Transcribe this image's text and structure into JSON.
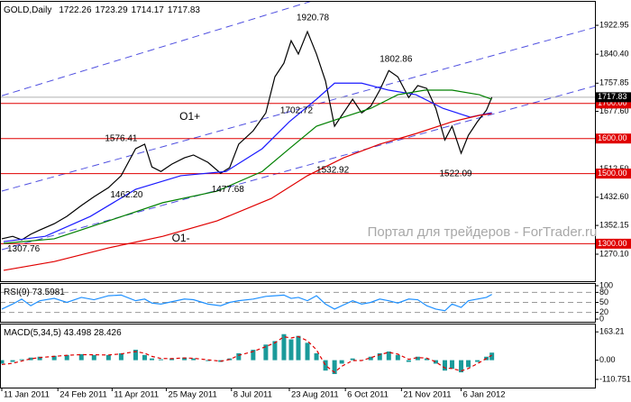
{
  "chart_data": [
    {
      "type": "line",
      "title": "GOLD,Daily",
      "ohlc": [
        1722.26,
        1723.29,
        1714.17,
        1717.83
      ],
      "watermark": "Портал для трейдеров - ForTrader.ru",
      "xlim": [
        -1,
        328
      ],
      "ylim": [
        1193,
        1990
      ],
      "yticks": [
        1922.95,
        {
          "value": 1840.4,
          "label": "1840.40"
        },
        1757.85,
        {
          "value": 1677.6,
          "label": "1677.60"
        },
        1595.05,
        {
          "value": 1512.5,
          "label": "1512.50"
        },
        {
          "value": 1432.6,
          "label": "1432.60"
        },
        1352.15,
        {
          "value": 1270.1,
          "label": "1270.10"
        }
      ],
      "series": [
        {
          "color": "#000000",
          "x": [
            0,
            6,
            11,
            16,
            21,
            29,
            36,
            44,
            51,
            59,
            66,
            74,
            79,
            83,
            88,
            94,
            101,
            106,
            114,
            121,
            126,
            131,
            139,
            146,
            151,
            156,
            160,
            164,
            169,
            174,
            179,
            184,
            188,
            194,
            199,
            204,
            209,
            214,
            219,
            225,
            230,
            235,
            240,
            245,
            249,
            254,
            258,
            263,
            268,
            271
          ],
          "values": [
            1314,
            1321,
            1311,
            1327,
            1339,
            1357,
            1378,
            1409,
            1434,
            1460,
            1494,
            1571,
            1584,
            1519,
            1506,
            1527,
            1545,
            1553,
            1532,
            1501,
            1517,
            1584,
            1622,
            1673,
            1776,
            1815,
            1879,
            1841,
            1905,
            1841,
            1764,
            1635,
            1666,
            1712,
            1673,
            1692,
            1738,
            1794,
            1776,
            1717,
            1751,
            1743,
            1686,
            1596,
            1635,
            1558,
            1609,
            1648,
            1681,
            1718
          ]
        },
        {
          "color": "#1a1aff",
          "x": [
            1,
            24,
            49,
            74,
            99,
            124,
            144,
            159,
            174,
            184,
            199,
            214,
            229,
            244,
            259,
            271
          ],
          "values": [
            1306,
            1321,
            1378,
            1455,
            1494,
            1506,
            1571,
            1648,
            1712,
            1758,
            1758,
            1738,
            1725,
            1686,
            1661,
            1674
          ]
        },
        {
          "color": "#008000",
          "x": [
            1,
            29,
            59,
            89,
            119,
            144,
            159,
            174,
            189,
            204,
            219,
            234,
            249,
            264,
            271
          ],
          "values": [
            1301,
            1314,
            1365,
            1417,
            1450,
            1506,
            1571,
            1635,
            1661,
            1686,
            1725,
            1738,
            1738,
            1725,
            1712
          ]
        },
        {
          "color": "#e00000",
          "x": [
            1,
            29,
            59,
            89,
            119,
            149,
            169,
            189,
            209,
            229,
            249,
            264,
            271
          ],
          "values": [
            1224,
            1249,
            1288,
            1321,
            1365,
            1429,
            1494,
            1545,
            1584,
            1614,
            1648,
            1666,
            1671
          ]
        }
      ],
      "trendlines": [
        {
          "color": "#5050e0",
          "x": [
            0,
            330
          ],
          "values": [
            1722,
            2242
          ]
        },
        {
          "color": "#5050e0",
          "x": [
            0,
            330
          ],
          "values": [
            1450,
            1920
          ]
        },
        {
          "color": "#5050e0",
          "x": [
            0,
            330
          ],
          "values": [
            1283,
            1753
          ]
        }
      ],
      "levels": [
        {
          "value": 1700,
          "label": "1700.00"
        },
        {
          "value": 1600,
          "label": "1600.00"
        },
        {
          "value": 1500,
          "label": "1500.00"
        },
        {
          "value": 1300,
          "label": "1300.00"
        }
      ],
      "level_color": "#e00000",
      "current": {
        "value": 1717.83,
        "label": "1717.83"
      },
      "annotations": [
        {
          "label": "1920.78",
          "x": 172,
          "y": 1920.78,
          "position": "above"
        },
        {
          "label": "1802.86",
          "x": 218,
          "y": 1802.86,
          "position": "above"
        },
        {
          "label": "1702.72",
          "x": 163,
          "y": 1702.72,
          "position": "below"
        },
        {
          "label": "1576.41",
          "x": 66,
          "y": 1576.41,
          "position": "above"
        },
        {
          "label": "1462.20",
          "x": 69,
          "y": 1462.2,
          "position": "below"
        },
        {
          "label": "1477.68",
          "x": 125,
          "y": 1477.68,
          "position": "below"
        },
        {
          "label": "1532.92",
          "x": 183,
          "y": 1532.92,
          "position": "below"
        },
        {
          "label": "1522.09",
          "x": 251,
          "y": 1522.09,
          "position": "below"
        },
        {
          "label": "1307.76",
          "x": 12,
          "y": 1307.76,
          "position": "below"
        },
        {
          "label": "O1+",
          "x": 104,
          "y": 1661,
          "position": "center"
        },
        {
          "label": "O1-",
          "x": 99,
          "y": 1314,
          "position": "center"
        }
      ]
    },
    {
      "type": "line",
      "title": "RSI(9) 73.5981",
      "xlim": [
        -1,
        328
      ],
      "ylim": [
        -8,
        108
      ],
      "yticks": [
        100,
        80,
        50,
        20,
        0
      ],
      "levels": [
        80,
        50,
        20
      ],
      "series": [
        {
          "color": "#1e90ff",
          "x": [
            0,
            6,
            11,
            16,
            21,
            29,
            36,
            44,
            51,
            59,
            66,
            74,
            79,
            83,
            88,
            94,
            101,
            106,
            114,
            121,
            126,
            131,
            139,
            146,
            151,
            156,
            160,
            164,
            169,
            174,
            179,
            184,
            188,
            194,
            199,
            204,
            209,
            214,
            219,
            225,
            230,
            235,
            240,
            245,
            249,
            254,
            258,
            263,
            268,
            271
          ],
          "values": [
            30,
            45,
            60,
            40,
            55,
            62,
            50,
            65,
            58,
            70,
            72,
            55,
            60,
            48,
            45,
            52,
            60,
            58,
            45,
            40,
            50,
            55,
            60,
            68,
            70,
            72,
            62,
            65,
            55,
            70,
            45,
            30,
            40,
            55,
            45,
            50,
            60,
            55,
            48,
            60,
            58,
            40,
            30,
            25,
            45,
            35,
            55,
            60,
            65,
            74
          ]
        }
      ]
    },
    {
      "type": "bar",
      "title": "MACD(5,34,5) 43.498 28.426",
      "xlim": [
        -1,
        328
      ],
      "ylim": [
        -158,
        211
      ],
      "yticks": [
        163.21,
        {
          "value": 0,
          "label": "0.00"
        },
        -110.751
      ],
      "xticks": [
        {
          "value": 0,
          "label": "11 Jan 2011"
        },
        {
          "value": 31,
          "label": "24 Feb 2011"
        },
        {
          "value": 61,
          "label": "11 Apr 2011"
        },
        {
          "value": 91,
          "label": "25 May 2011"
        },
        {
          "value": 127,
          "label": "8 Jul 2011"
        },
        {
          "value": 159,
          "label": "23 Aug 2011"
        },
        {
          "value": 190,
          "label": "6 Oct 2011"
        },
        {
          "value": 221,
          "label": "21 Nov 2011"
        },
        {
          "value": 254,
          "label": "6 Jan 2012"
        }
      ],
      "series": [
        {
          "color": "#1a9a9a",
          "x": [
            0,
            6,
            11,
            16,
            21,
            29,
            36,
            44,
            51,
            59,
            66,
            74,
            79,
            83,
            88,
            94,
            101,
            106,
            114,
            121,
            126,
            131,
            139,
            146,
            151,
            156,
            160,
            164,
            169,
            174,
            179,
            184,
            188,
            194,
            199,
            204,
            209,
            214,
            219,
            225,
            230,
            235,
            240,
            245,
            249,
            254,
            258,
            263,
            268,
            271
          ],
          "values": [
            -20,
            -10,
            5,
            15,
            20,
            25,
            30,
            35,
            30,
            30,
            40,
            60,
            30,
            10,
            5,
            10,
            15,
            10,
            -5,
            -10,
            10,
            40,
            60,
            90,
            110,
            150,
            120,
            140,
            100,
            40,
            -60,
            -80,
            -20,
            10,
            0,
            20,
            40,
            50,
            30,
            -10,
            20,
            10,
            -20,
            -60,
            -50,
            -70,
            -40,
            -10,
            20,
            43.5
          ]
        },
        {
          "type": "line",
          "dashed": true,
          "color": "#e00000",
          "x": [
            0,
            6,
            11,
            16,
            21,
            29,
            36,
            44,
            51,
            59,
            66,
            74,
            79,
            83,
            88,
            94,
            101,
            106,
            114,
            121,
            126,
            131,
            139,
            146,
            151,
            156,
            160,
            164,
            169,
            174,
            179,
            184,
            188,
            194,
            199,
            204,
            209,
            214,
            219,
            225,
            230,
            235,
            240,
            245,
            249,
            254,
            258,
            263,
            268,
            271
          ],
          "values": [
            -25,
            -18,
            -5,
            8,
            15,
            22,
            28,
            32,
            31,
            30,
            36,
            50,
            40,
            22,
            10,
            9,
            13,
            11,
            2,
            -6,
            4,
            28,
            50,
            78,
            100,
            135,
            128,
            136,
            112,
            60,
            -30,
            -70,
            -35,
            -2,
            -2,
            14,
            32,
            45,
            35,
            5,
            15,
            12,
            -10,
            -45,
            -48,
            -62,
            -48,
            -20,
            10,
            28.4
          ]
        }
      ]
    }
  ]
}
